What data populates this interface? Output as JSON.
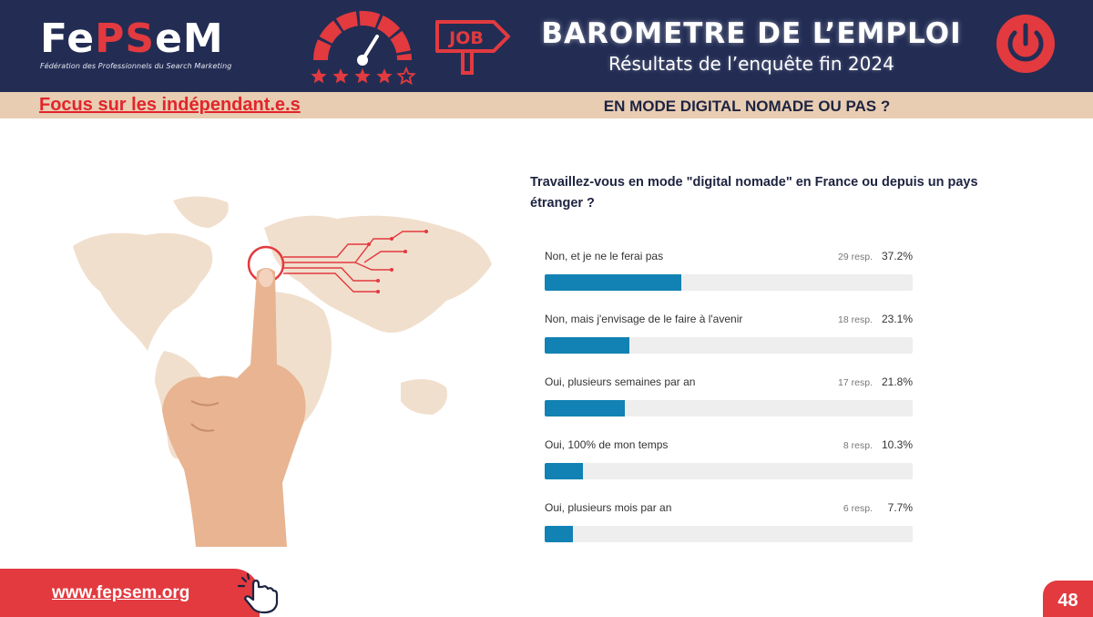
{
  "header": {
    "logo": {
      "part1": "Fe",
      "part2": "PS",
      "part3": "e",
      "part4": "M",
      "tagline": "Fédération des Professionnels du Search Marketing"
    },
    "sign_text": "JOB",
    "title": "BAROMETRE DE L’EMPLOI",
    "subtitle": "Résultats de l’enquête fin 2024",
    "rating_stars": 4,
    "rating_max": 5
  },
  "band": {
    "focus_link": "Focus sur les indépendant.e.s",
    "section_title": "EN MODE DIGITAL NOMADE OU PAS ?"
  },
  "colors": {
    "navy": "#232d54",
    "accent_red": "#e23a3f",
    "band_beige": "#e8cdb3",
    "bar_blue": "#1182b3",
    "track_gray": "#eeeeee"
  },
  "chart_data": {
    "type": "bar",
    "orientation": "horizontal",
    "title": "Travaillez-vous en mode \"digital nomade\" en France ou depuis un pays étranger ?",
    "unit_suffix": "resp.",
    "xlim": [
      0,
      100
    ],
    "items": [
      {
        "label": "Non, et je ne le ferai pas",
        "responses": 29,
        "percent": 37.2,
        "count_label": "29 resp.",
        "percent_label": "37.2%"
      },
      {
        "label": "Non, mais j'envisage de le faire à l'avenir",
        "responses": 18,
        "percent": 23.1,
        "count_label": "18 resp.",
        "percent_label": "23.1%"
      },
      {
        "label": "Oui, plusieurs semaines par an",
        "responses": 17,
        "percent": 21.8,
        "count_label": "17 resp.",
        "percent_label": "21.8%"
      },
      {
        "label": "Oui, 100% de mon temps",
        "responses": 8,
        "percent": 10.3,
        "count_label": "8 resp.",
        "percent_label": "10.3%"
      },
      {
        "label": "Oui, plusieurs mois par an",
        "responses": 6,
        "percent": 7.7,
        "count_label": "6 resp.",
        "percent_label": "7.7%"
      }
    ]
  },
  "footer": {
    "website": "www.fepsem.org",
    "page_number": "48"
  }
}
